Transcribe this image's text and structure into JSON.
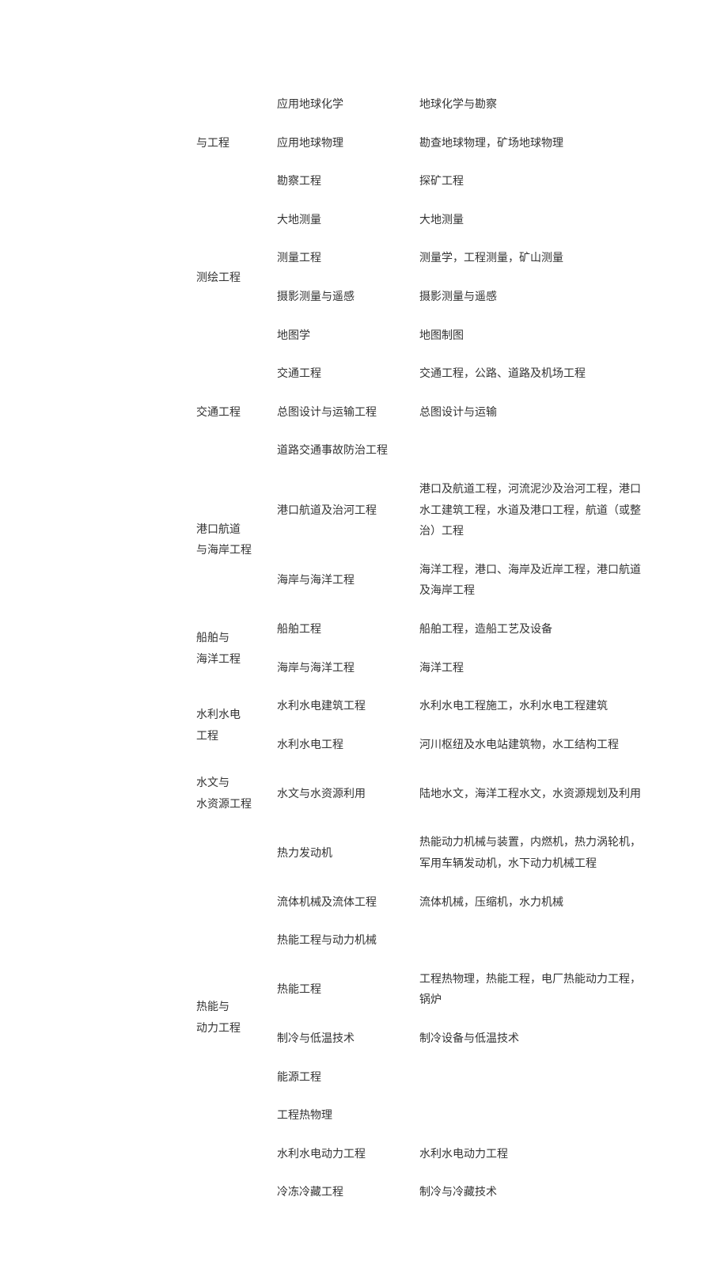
{
  "text_color": "#333333",
  "background_color": "#ffffff",
  "font_size_pt": 10.5,
  "font_family": "SimSun",
  "categories": [
    {
      "name": "与工程",
      "rows": [
        {
          "c2": "应用地球化学",
          "c3": "地球化学与勘察"
        },
        {
          "c2": "应用地球物理",
          "c3": "勘查地球物理，矿场地球物理"
        },
        {
          "c2": "勘察工程",
          "c3": "探矿工程"
        }
      ]
    },
    {
      "name": "测绘工程",
      "rows": [
        {
          "c2": "大地测量",
          "c3": "大地测量"
        },
        {
          "c2": "测量工程",
          "c3": "测量学，工程测量，矿山测量"
        },
        {
          "c2": "摄影测量与遥感",
          "c3": "摄影测量与遥感"
        },
        {
          "c2": "地图学",
          "c3": "地图制图"
        }
      ]
    },
    {
      "name": "交通工程",
      "rows": [
        {
          "c2": "交通工程",
          "c3": "交通工程，公路、道路及机场工程"
        },
        {
          "c2": "总图设计与运输工程",
          "c3": "总图设计与运输"
        },
        {
          "c2": "道路交通事故防治工程",
          "c3": ""
        }
      ]
    },
    {
      "name": "港口航道\n与海岸工程",
      "rows": [
        {
          "c2": "港口航道及治河工程",
          "c3": "港口及航道工程，河流泥沙及治河工程，港口水工建筑工程，水道及港口工程，航道（或整治）工程"
        },
        {
          "c2": "海岸与海洋工程",
          "c3": "海洋工程，港口、海岸及近岸工程，港口航道及海岸工程"
        }
      ]
    },
    {
      "name": "船舶与\n海洋工程",
      "rows": [
        {
          "c2": "船舶工程",
          "c3": "船舶工程，造船工艺及设备"
        },
        {
          "c2": "海岸与海洋工程",
          "c3": "海洋工程"
        }
      ]
    },
    {
      "name": "水利水电\n工程",
      "rows": [
        {
          "c2": "水利水电建筑工程",
          "c3": "水利水电工程施工，水利水电工程建筑"
        },
        {
          "c2": "水利水电工程",
          "c3": "河川枢纽及水电站建筑物，水工结构工程"
        }
      ]
    },
    {
      "name": "水文与\n水资源工程",
      "rows": [
        {
          "c2": "水文与水资源利用",
          "c3": "陆地水文，海洋工程水文，水资源规划及利用"
        }
      ]
    },
    {
      "name": "热能与\n动力工程",
      "rows": [
        {
          "c2": "热力发动机",
          "c3": "热能动力机械与装置，内燃机，热力涡轮机，军用车辆发动机，水下动力机械工程"
        },
        {
          "c2": "流体机械及流体工程",
          "c3": "流体机械，压缩机，水力机械"
        },
        {
          "c2": "热能工程与动力机械",
          "c3": ""
        },
        {
          "c2": "热能工程",
          "c3": "工程热物理，热能工程，电厂热能动力工程，锅炉"
        },
        {
          "c2": "制冷与低温技术",
          "c3": "制冷设备与低温技术"
        },
        {
          "c2": "能源工程",
          "c3": ""
        },
        {
          "c2": "工程热物理",
          "c3": ""
        },
        {
          "c2": "水利水电动力工程",
          "c3": "水利水电动力工程"
        },
        {
          "c2": "冷冻冷藏工程",
          "c3": "制冷与冷藏技术"
        }
      ]
    }
  ]
}
